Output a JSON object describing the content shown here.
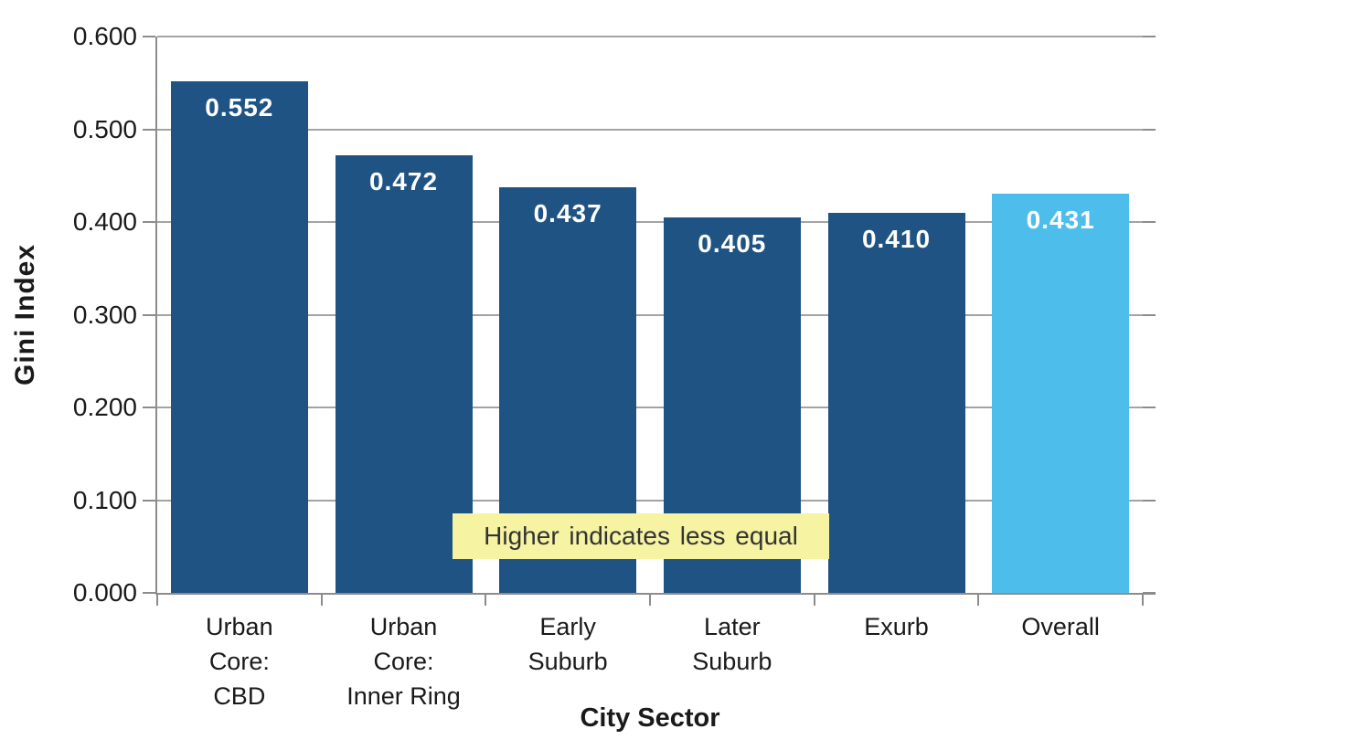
{
  "chart_data": {
    "type": "bar",
    "title": "",
    "xlabel": "City Sector",
    "ylabel": "Gini Index",
    "categories": [
      "Urban Core: CBD",
      "Urban Core: Inner Ring",
      "Early Suburb",
      "Later Suburb",
      "Exurb",
      "Overall"
    ],
    "category_lines": [
      [
        "Urban",
        "Core:",
        "CBD"
      ],
      [
        "Urban",
        "Core:",
        "Inner Ring"
      ],
      [
        "Early",
        "Suburb"
      ],
      [
        "Later",
        "Suburb"
      ],
      [
        "Exurb"
      ],
      [
        "Overall"
      ]
    ],
    "values": [
      0.552,
      0.472,
      0.437,
      0.405,
      0.41,
      0.431
    ],
    "value_labels": [
      "0.552",
      "0.472",
      "0.437",
      "0.405",
      "0.410",
      "0.431"
    ],
    "bar_colors": [
      "#1F5384",
      "#1F5384",
      "#1F5384",
      "#1F5384",
      "#1F5384",
      "#4DBEEC"
    ],
    "ylim": [
      0.0,
      0.6
    ],
    "ytick_values": [
      0.6,
      0.5,
      0.4,
      0.3,
      0.2,
      0.1,
      0.0
    ],
    "ytick_labels": [
      "0.600",
      "0.500",
      "0.400",
      "0.300",
      "0.200",
      "0.100",
      "0.000"
    ],
    "grid": true,
    "legend": "none",
    "annotation": {
      "text": "Higher indicates less equal",
      "bg_color": "#F6F3A2",
      "text_color": "#333333"
    },
    "colors": {
      "bar_dark": "#1F5384",
      "bar_light": "#4DBEEC",
      "value_label": "#FFFFFF",
      "grid": "#A3A3A3",
      "axis": "#8C8C8C",
      "text": "#1A1A1A"
    }
  }
}
